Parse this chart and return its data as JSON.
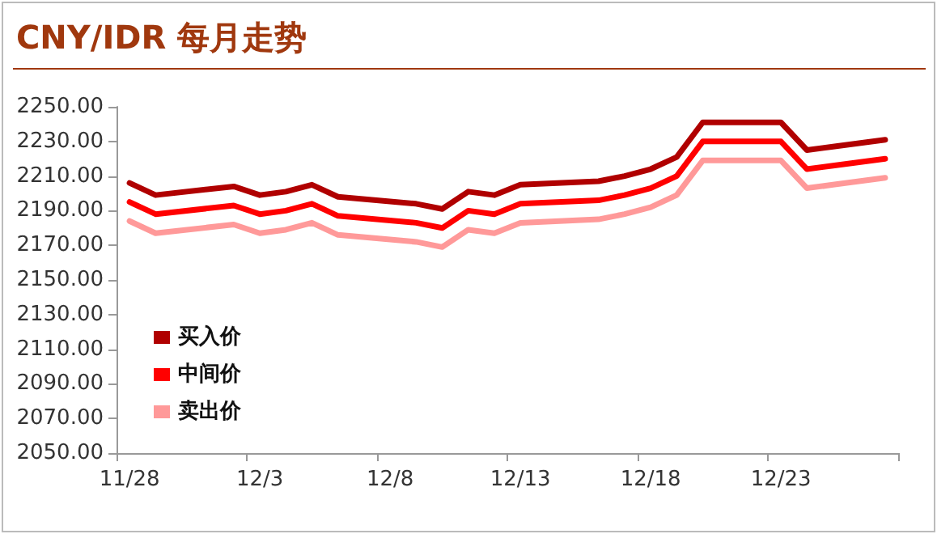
{
  "chart_data": {
    "type": "line",
    "title": "CNY/IDR 每月走势",
    "categories": [
      "11/28",
      null,
      null,
      null,
      null,
      "12/3",
      null,
      null,
      null,
      null,
      "12/8",
      null,
      null,
      null,
      null,
      "12/13",
      null,
      null,
      null,
      null,
      "12/18",
      null,
      null,
      null,
      null,
      "12/23",
      null,
      null,
      null,
      null
    ],
    "series": [
      {
        "name": "买入价",
        "color": "#b00000",
        "values": [
          2206,
          2199,
          null,
          null,
          2204,
          2199,
          2201,
          2205,
          2198,
          null,
          null,
          2194,
          2191,
          2201,
          2199,
          2205,
          null,
          null,
          2207,
          2210,
          2214,
          2221,
          2241,
          null,
          null,
          2241,
          2225,
          2227,
          2229,
          2231
        ]
      },
      {
        "name": "中间价",
        "color": "#ff0000",
        "values": [
          2195,
          2188,
          null,
          null,
          2193,
          2188,
          2190,
          2194,
          2187,
          null,
          null,
          2183,
          2180,
          2190,
          2188,
          2194,
          null,
          null,
          2196,
          2199,
          2203,
          2210,
          2230,
          null,
          null,
          2230,
          2214,
          2216,
          2218,
          2220
        ]
      },
      {
        "name": "卖出价",
        "color": "#ff9999",
        "values": [
          2184,
          2177,
          null,
          null,
          2182,
          2177,
          2179,
          2183,
          2176,
          null,
          null,
          2172,
          2169,
          2179,
          2177,
          2183,
          null,
          null,
          2185,
          2188,
          2192,
          2199,
          2219,
          null,
          null,
          2219,
          2203,
          2205,
          2207,
          2209
        ]
      }
    ],
    "ylim": [
      2050,
      2250
    ],
    "yticks": [
      {
        "value": 2050,
        "label": "2050.00"
      },
      {
        "value": 2070,
        "label": "2070.00"
      },
      {
        "value": 2090,
        "label": "2090.00"
      },
      {
        "value": 2110,
        "label": "2110.00"
      },
      {
        "value": 2130,
        "label": "2130.00"
      },
      {
        "value": 2150,
        "label": "2150.00"
      },
      {
        "value": 2170,
        "label": "2170.00"
      },
      {
        "value": 2190,
        "label": "2190.00"
      },
      {
        "value": 2210,
        "label": "2210.00"
      },
      {
        "value": 2230,
        "label": "2230.00"
      },
      {
        "value": 2250,
        "label": "2250.00"
      }
    ],
    "grid": false,
    "legend": "bottom left",
    "marker": "none",
    "line_style": "solid"
  }
}
